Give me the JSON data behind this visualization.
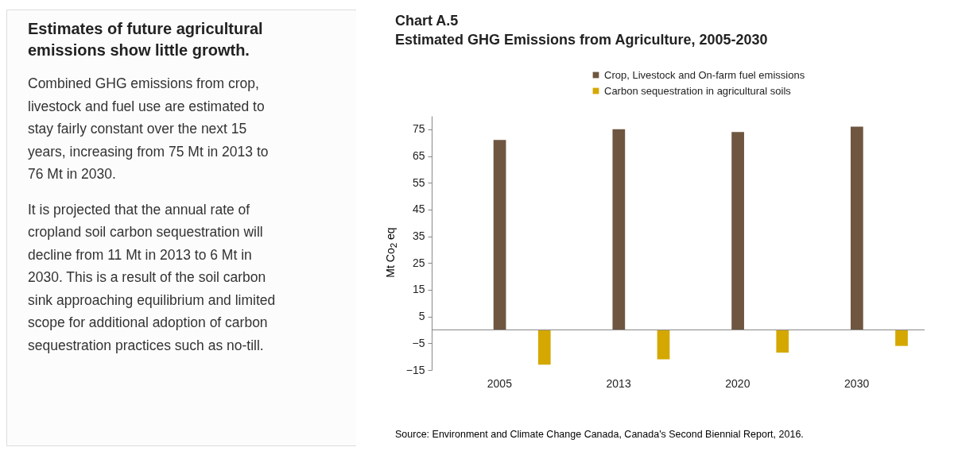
{
  "chart_data": {
    "type": "bar",
    "title": "Chart A.5",
    "subtitle": "Estimated GHG Emissions from Agriculture, 2005-2030",
    "ylabel": "Mt Co$_{2}$ eq",
    "categories": [
      "2005",
      "2013",
      "2020",
      "2030"
    ],
    "series": [
      {
        "name": "Crop, Livestock and On-farm fuel emissions",
        "color": "#6e5640",
        "values": [
          71,
          75,
          74,
          76
        ]
      },
      {
        "name": "Carbon sequestration in agricultural soils",
        "color": "#d4a800",
        "values": [
          -13,
          -11,
          -8.5,
          -6
        ]
      }
    ],
    "ylim": [
      -15,
      80
    ],
    "yticks": [
      -15,
      -5,
      5,
      15,
      25,
      35,
      45,
      55,
      65,
      75
    ],
    "grid": false,
    "legend": "top right",
    "annotations": [
      "Estimates of future agricultural emissions show little growth.",
      "Combined GHG emissions from crop, livestock and fuel use are estimated to stay fairly constant over the next 15 years, increasing from 75 Mt in 2013 to 76 Mt in 2030.",
      "It is projected that the annual rate of cropland soil carbon sequestration will decline from 11 Mt in 2013 to 6 Mt in 2030. This is a result of the soil carbon sink approaching equilibrium and limited scope for additional adoption of carbon sequestration practices such as no-till.",
      "Source: Environment and Climate Change Canada, Canada's Second Biennial Report, 2016."
    ]
  }
}
